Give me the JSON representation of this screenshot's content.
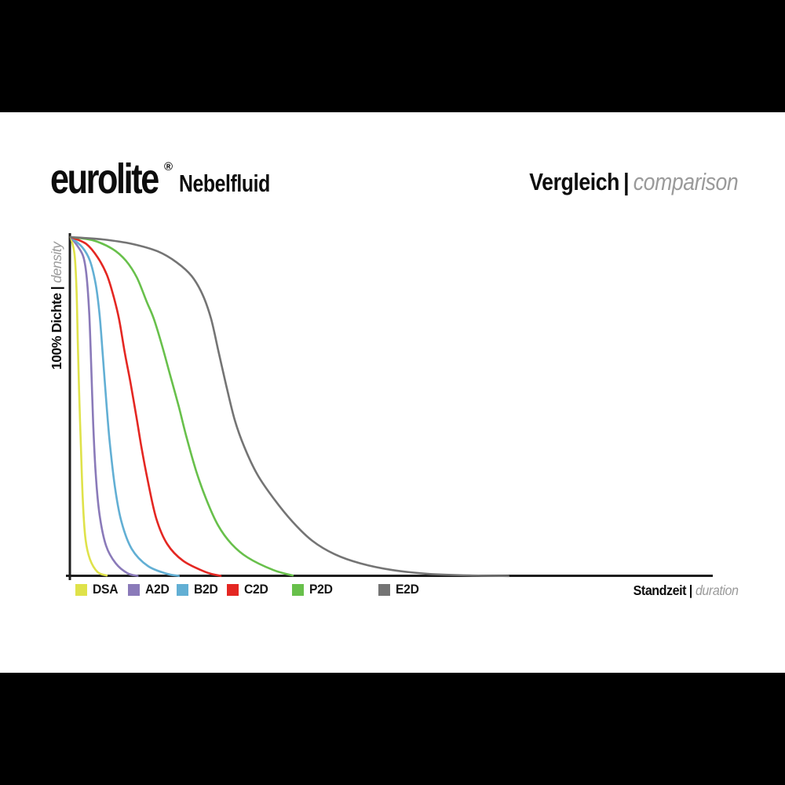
{
  "header": {
    "brand": "eurolite",
    "brand_reg": "®",
    "product": "Nebelfluid",
    "title_de": "Vergleich",
    "title_sep": "|",
    "title_en": "comparison"
  },
  "axes": {
    "y_label_bold": "100% Dichte",
    "y_label_sep": "|",
    "y_label_italic": "density",
    "x_label_bold": "Standzeit",
    "x_label_sep": "|",
    "x_label_italic": "duration",
    "axis_color": "#1e1e1e"
  },
  "chart_data": {
    "type": "line",
    "title": "Vergleich | comparison",
    "subtitle": "eurolite® Nebelfluid",
    "xlabel": "Standzeit | duration",
    "ylabel": "100% Dichte | density",
    "x_range": [
      0,
      100
    ],
    "y_range": [
      0,
      100
    ],
    "grid": false,
    "legend_position": "bottom",
    "note_axes_unlabeled": "no numeric tick labels shown; x = relative duration 0-100, y = density percent",
    "series": [
      {
        "name": "DSA",
        "color": "#dfe24a",
        "points": [
          [
            0,
            100
          ],
          [
            0.6,
            95
          ],
          [
            0.9,
            85
          ],
          [
            1.1,
            70
          ],
          [
            1.3,
            55
          ],
          [
            1.6,
            38
          ],
          [
            1.9,
            22
          ],
          [
            2.3,
            11
          ],
          [
            3.0,
            5
          ],
          [
            4.2,
            1.2
          ],
          [
            5.6,
            0.2
          ]
        ]
      },
      {
        "name": "A2D",
        "color": "#8a7ab9",
        "points": [
          [
            0,
            100
          ],
          [
            1.2,
            97
          ],
          [
            2.0,
            94
          ],
          [
            2.5,
            88
          ],
          [
            2.9,
            77
          ],
          [
            3.2,
            62
          ],
          [
            3.5,
            45
          ],
          [
            3.9,
            30
          ],
          [
            4.5,
            18
          ],
          [
            5.5,
            9
          ],
          [
            7.0,
            3.8
          ],
          [
            8.8,
            0.9
          ],
          [
            10.4,
            0.1
          ]
        ]
      },
      {
        "name": "B2D",
        "color": "#62afd4",
        "points": [
          [
            0,
            100
          ],
          [
            1.8,
            97
          ],
          [
            3.0,
            93
          ],
          [
            3.9,
            86
          ],
          [
            4.5,
            77
          ],
          [
            5.0,
            65
          ],
          [
            5.6,
            50
          ],
          [
            6.1,
            39
          ],
          [
            6.9,
            26
          ],
          [
            7.9,
            16
          ],
          [
            9.5,
            8
          ],
          [
            12.0,
            3
          ],
          [
            15.0,
            0.7
          ],
          [
            16.8,
            0.1
          ]
        ]
      },
      {
        "name": "C2D",
        "color": "#e42722",
        "points": [
          [
            0,
            100
          ],
          [
            2.4,
            98
          ],
          [
            4.2,
            94
          ],
          [
            5.6,
            89
          ],
          [
            6.6,
            83
          ],
          [
            7.5,
            76
          ],
          [
            8.4,
            66
          ],
          [
            9.3,
            57
          ],
          [
            10.3,
            46
          ],
          [
            11.0,
            38
          ],
          [
            12.0,
            28
          ],
          [
            13.3,
            17
          ],
          [
            15.0,
            9.5
          ],
          [
            17.5,
            4.5
          ],
          [
            21.0,
            1.2
          ],
          [
            23.3,
            0.1
          ]
        ]
      },
      {
        "name": "P2D",
        "color": "#68c04b",
        "points": [
          [
            0,
            100
          ],
          [
            3.5,
            99
          ],
          [
            6.5,
            96.5
          ],
          [
            8.6,
            93
          ],
          [
            10.3,
            88
          ],
          [
            11.8,
            81
          ],
          [
            12.9,
            76
          ],
          [
            14.2,
            68
          ],
          [
            15.5,
            59
          ],
          [
            16.8,
            50
          ],
          [
            18.0,
            41
          ],
          [
            19.5,
            31
          ],
          [
            21.0,
            23
          ],
          [
            22.9,
            15
          ],
          [
            25.0,
            9.5
          ],
          [
            27.5,
            5.5
          ],
          [
            31.5,
            1.8
          ],
          [
            34.5,
            0.2
          ]
        ]
      },
      {
        "name": "E2D",
        "color": "#747474",
        "points": [
          [
            0,
            100
          ],
          [
            5.0,
            99.3
          ],
          [
            9.5,
            98
          ],
          [
            13.5,
            95.8
          ],
          [
            16.5,
            92.5
          ],
          [
            18.8,
            88.5
          ],
          [
            20.5,
            83
          ],
          [
            21.8,
            76
          ],
          [
            23.0,
            66
          ],
          [
            24.2,
            56
          ],
          [
            25.5,
            46
          ],
          [
            27.0,
            38
          ],
          [
            29.0,
            30
          ],
          [
            31.5,
            23
          ],
          [
            34.5,
            16
          ],
          [
            37.5,
            10.5
          ],
          [
            41.0,
            6.5
          ],
          [
            45.0,
            3.8
          ],
          [
            50.0,
            1.8
          ],
          [
            55.5,
            0.7
          ],
          [
            62.0,
            0.2
          ],
          [
            68.0,
            0.05
          ]
        ]
      }
    ]
  }
}
